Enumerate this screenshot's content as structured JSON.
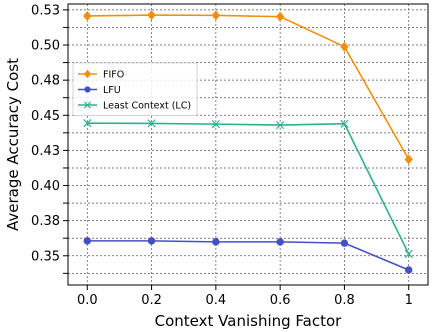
{
  "chart_data": {
    "type": "line",
    "xlabel": "Context Vanishing Factor",
    "ylabel": "Average Accuracy Cost",
    "x": [
      0.0,
      0.2,
      0.4,
      0.6,
      0.8,
      1.0
    ],
    "x_tick_labels": [
      "0.0",
      "0.2",
      "0.4",
      "0.6",
      "0.8",
      "1"
    ],
    "y_ticks": [
      0.3375,
      0.35,
      0.3625,
      0.375,
      0.3875,
      0.4,
      0.4125,
      0.425,
      0.4375,
      0.45,
      0.4625,
      0.475,
      0.4875,
      0.5,
      0.5125,
      0.525
    ],
    "y_tick_labels": [
      "",
      "0.35",
      "",
      "0.38",
      "",
      "0.40",
      "",
      "0.43",
      "",
      "0.45",
      "",
      "0.48",
      "",
      "0.50",
      "",
      "0.53"
    ],
    "xlim": [
      -0.06,
      1.06
    ],
    "ylim": [
      0.3292,
      0.5292
    ],
    "grid": true,
    "legend_position": "upper-left",
    "series": [
      {
        "name": "FIFO",
        "color": "#f0900a",
        "marker": "diamond",
        "values": [
          0.5207,
          0.5213,
          0.5211,
          0.5202,
          0.4988,
          0.4186
        ]
      },
      {
        "name": "LFU",
        "color": "#4450c4",
        "marker": "circle",
        "values": [
          0.3606,
          0.3606,
          0.3599,
          0.3599,
          0.359,
          0.3399
        ]
      },
      {
        "name": "Least Context (LC)",
        "color": "#2ab38c",
        "marker": "x",
        "values": [
          0.4444,
          0.4442,
          0.4437,
          0.443,
          0.444,
          0.3513
        ]
      }
    ]
  }
}
